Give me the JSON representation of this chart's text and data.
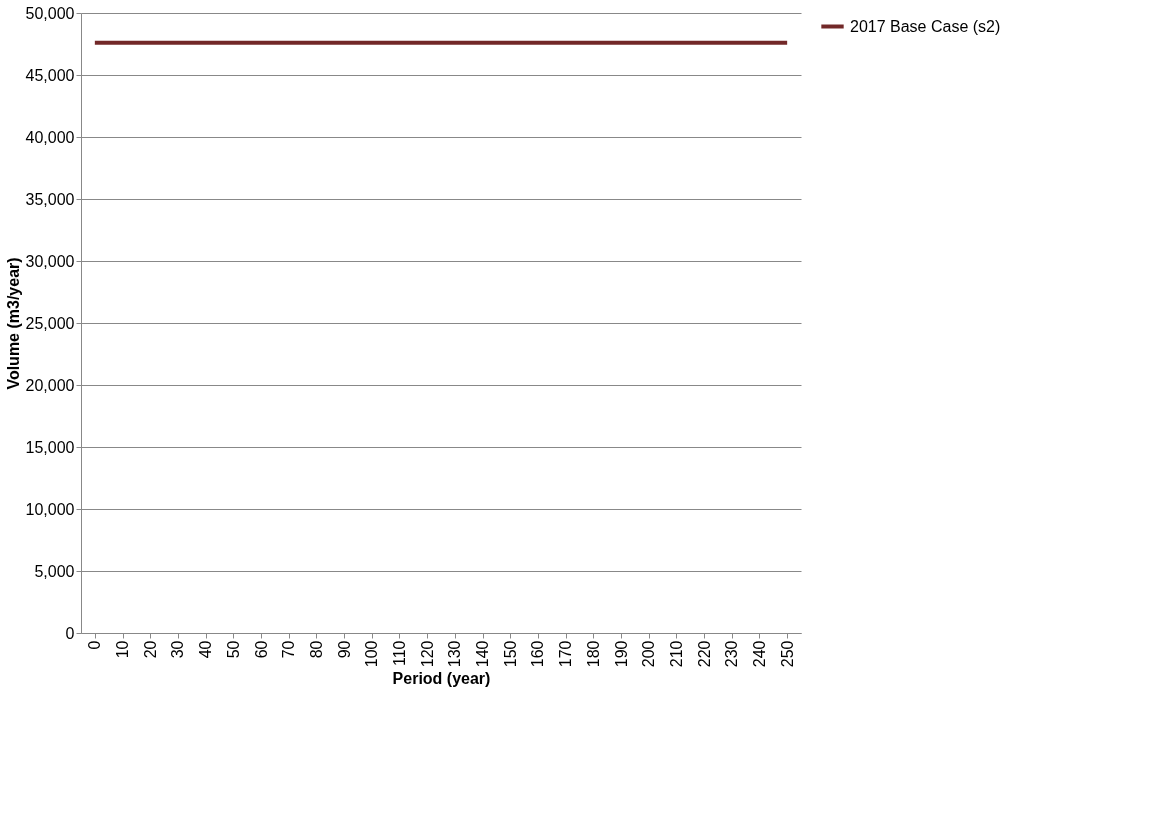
{
  "chart_data": {
    "type": "line",
    "xlabel": "Period (year)",
    "ylabel": "Volume (m3/year)",
    "categories": [
      "0",
      "10",
      "20",
      "30",
      "40",
      "50",
      "60",
      "70",
      "80",
      "90",
      "100",
      "110",
      "120",
      "130",
      "140",
      "150",
      "160",
      "170",
      "180",
      "190",
      "200",
      "210",
      "220",
      "230",
      "240",
      "250"
    ],
    "series": [
      {
        "name": "2017 Base Case (s2)",
        "color": "#722828",
        "values": [
          47600,
          47600,
          47600,
          47600,
          47600,
          47600,
          47600,
          47600,
          47600,
          47600,
          47600,
          47600,
          47600,
          47600,
          47600,
          47600,
          47600,
          47600,
          47600,
          47600,
          47600,
          47600,
          47600,
          47600,
          47600,
          47600
        ]
      }
    ],
    "ylim": [
      0,
      50000
    ],
    "yticks": [
      0,
      {
        "value": 5000,
        "label": "5,000"
      },
      {
        "value": 10000,
        "label": "10,000"
      },
      {
        "value": 15000,
        "label": "15,000"
      },
      {
        "value": 20000,
        "label": "20,000"
      },
      {
        "value": 25000,
        "label": "25,000"
      },
      {
        "value": 30000,
        "label": "30,000"
      },
      {
        "value": 35000,
        "label": "35,000"
      },
      {
        "value": 40000,
        "label": "40,000"
      },
      {
        "value": 45000,
        "label": "45,000"
      },
      {
        "value": 50000,
        "label": "50,000"
      }
    ],
    "grid": "y",
    "legend": "right",
    "marker": "none",
    "line_style": "solid"
  }
}
